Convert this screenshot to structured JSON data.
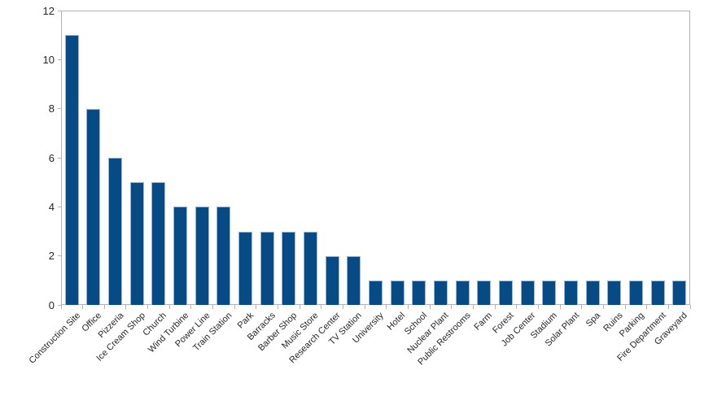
{
  "chart_data": {
    "type": "bar",
    "title": "",
    "xlabel": "",
    "ylabel": "",
    "categories": [
      "Construction Site",
      "Office",
      "Pizzeria",
      "Ice Cream Shop",
      "Church",
      "Wind Turbine",
      "Power Line",
      "Train Station",
      "Park",
      "Barracks",
      "Barber Shop",
      "Music Store",
      "Research Center",
      "TV Station",
      "University",
      "Hotel",
      "School",
      "Nuclear Plant",
      "Public Restrooms",
      "Farm",
      "Forest",
      "Job Center",
      "Stadium",
      "Solar Plant",
      "Spa",
      "Ruins",
      "Parking",
      "Fire Department",
      "Graveyard"
    ],
    "values": [
      11,
      8,
      6,
      5,
      5,
      4,
      4,
      4,
      3,
      3,
      3,
      3,
      2,
      2,
      1,
      1,
      1,
      1,
      1,
      1,
      1,
      1,
      1,
      1,
      1,
      1,
      1,
      1,
      1
    ],
    "ylim": [
      0,
      12
    ],
    "yticks": [
      0,
      2,
      4,
      6,
      8,
      10,
      12
    ],
    "grid": "off",
    "legend": "none",
    "colors": {
      "bar_fill": "#064a86",
      "bar_border": "#9cb6d2",
      "axis": "#b2b2b2",
      "text": "#262626",
      "background": "#ffffff"
    }
  }
}
